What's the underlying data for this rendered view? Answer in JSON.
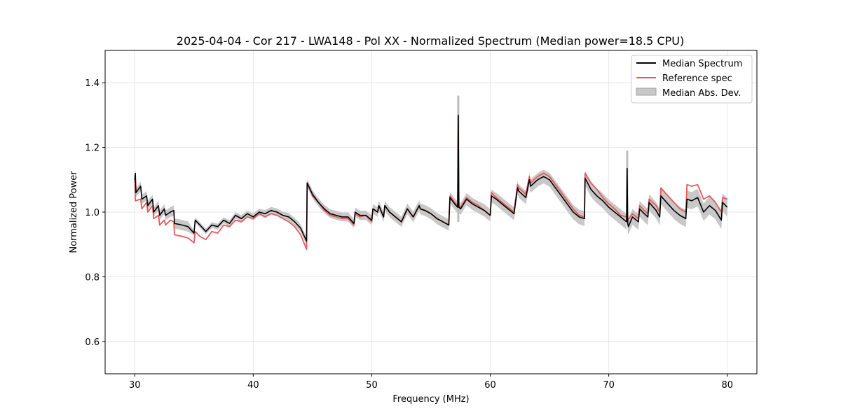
{
  "chart_data": {
    "type": "line",
    "title": "2025-04-04 - Cor 217 - LWA148 - Pol XX - Normalized Spectrum (Median power=18.5 CPU)",
    "xlabel": "Frequency (MHz)",
    "ylabel": "Normalized Power",
    "xlim": [
      27.5,
      82.5
    ],
    "ylim": [
      0.5,
      1.5
    ],
    "xticks": [
      30,
      40,
      50,
      60,
      70,
      80
    ],
    "yticks": [
      0.6,
      0.8,
      1.0,
      1.2,
      1.4
    ],
    "xtick_labels": [
      "30",
      "40",
      "50",
      "60",
      "70",
      "80"
    ],
    "ytick_labels": [
      "0.6",
      "0.8",
      "1.0",
      "1.2",
      "1.4"
    ],
    "grid": true,
    "legend_position": "top-right",
    "legend": [
      {
        "label": "Median Spectrum",
        "kind": "line",
        "color": "#000000"
      },
      {
        "label": "Reference spec",
        "kind": "line",
        "color": "#e8595b"
      },
      {
        "label": "Median Abs. Dev.",
        "kind": "band",
        "color": "#bdbdbd"
      }
    ],
    "series": [
      {
        "name": "Median Spectrum",
        "color": "#000000",
        "x": [
          30.0,
          30.05,
          30.1,
          30.5,
          30.6,
          31.0,
          31.1,
          31.5,
          31.6,
          32.0,
          32.1,
          32.5,
          32.6,
          33.0,
          33.3,
          33.35,
          34.0,
          34.5,
          35.0,
          35.1,
          35.5,
          36.0,
          36.5,
          37.0,
          37.5,
          38.0,
          38.5,
          39.0,
          39.5,
          40.0,
          40.5,
          41.0,
          41.5,
          42.0,
          42.5,
          43.0,
          43.5,
          44.0,
          44.5,
          44.55,
          45.0,
          45.5,
          46.0,
          46.5,
          47.0,
          47.5,
          48.0,
          48.5,
          48.6,
          49.0,
          49.5,
          50.0,
          50.1,
          50.5,
          50.6,
          51.0,
          51.1,
          51.5,
          52.0,
          52.5,
          53.0,
          53.5,
          54.0,
          54.1,
          54.5,
          55.0,
          55.5,
          56.0,
          56.5,
          56.6,
          57.0,
          57.25,
          57.3,
          57.35,
          57.5,
          58.0,
          58.5,
          59.0,
          59.5,
          60.0,
          60.1,
          60.5,
          61.0,
          61.5,
          62.0,
          62.3,
          62.4,
          63.0,
          63.3,
          63.4,
          64.0,
          64.5,
          65.0,
          65.5,
          66.0,
          66.5,
          67.0,
          67.5,
          67.95,
          68.0,
          68.5,
          69.0,
          69.5,
          70.0,
          70.5,
          71.0,
          71.5,
          71.55,
          71.6,
          71.65,
          72.0,
          72.5,
          72.6,
          73.0,
          73.3,
          73.4,
          74.0,
          74.3,
          74.4,
          75.0,
          75.5,
          76.0,
          76.5,
          76.6,
          77.0,
          77.5,
          78.0,
          78.5,
          79.0,
          79.5,
          79.6,
          80.0
        ],
        "y": [
          1.1,
          1.12,
          1.06,
          1.08,
          1.04,
          1.05,
          1.02,
          1.04,
          1.0,
          1.02,
          0.99,
          1.01,
          0.99,
          1.0,
          1.005,
          0.965,
          0.96,
          0.955,
          0.935,
          0.975,
          0.96,
          0.94,
          0.96,
          0.955,
          0.975,
          0.965,
          0.99,
          0.98,
          0.995,
          0.985,
          1.0,
          0.995,
          1.005,
          1.0,
          0.99,
          0.985,
          0.97,
          0.95,
          0.91,
          1.09,
          1.055,
          1.03,
          1.01,
          0.995,
          0.99,
          0.985,
          0.985,
          0.965,
          1.0,
          0.99,
          0.99,
          0.975,
          1.01,
          1.0,
          1.02,
          0.985,
          1.02,
          1.0,
          0.985,
          0.97,
          1.01,
          0.985,
          1.02,
          1.01,
          1.005,
          0.995,
          0.98,
          0.97,
          0.96,
          1.045,
          1.025,
          1.015,
          1.3,
          1.015,
          1.01,
          1.04,
          1.025,
          1.015,
          1.005,
          0.99,
          1.05,
          1.04,
          1.025,
          1.01,
          0.995,
          1.075,
          1.065,
          1.045,
          1.1,
          1.08,
          1.1,
          1.11,
          1.1,
          1.075,
          1.05,
          1.025,
          1.0,
          0.985,
          0.98,
          1.105,
          1.07,
          1.05,
          1.035,
          1.015,
          1.0,
          0.985,
          0.97,
          1.135,
          0.965,
          0.955,
          0.985,
          0.97,
          1.01,
          0.995,
          0.985,
          1.03,
          1.005,
          0.985,
          1.05,
          1.025,
          1.005,
          0.99,
          0.98,
          1.04,
          1.035,
          1.045,
          1.0,
          1.02,
          1.005,
          0.975,
          1.03,
          1.015
        ]
      },
      {
        "name": "Reference spec",
        "color": "#e8595b",
        "x": [
          30.0,
          30.05,
          30.5,
          30.6,
          31.0,
          31.1,
          31.5,
          31.6,
          32.0,
          32.1,
          32.5,
          32.6,
          33.0,
          33.3,
          33.35,
          34.0,
          34.5,
          35.0,
          35.1,
          35.5,
          36.0,
          36.5,
          37.0,
          37.5,
          38.0,
          38.5,
          39.0,
          39.5,
          40.0,
          40.5,
          41.0,
          41.5,
          42.0,
          42.5,
          43.0,
          43.5,
          44.0,
          44.5,
          44.55,
          45.0,
          45.5,
          46.0,
          46.5,
          47.0,
          47.5,
          48.0,
          48.5,
          48.6,
          49.0,
          49.5,
          50.0,
          50.1,
          50.5,
          50.6,
          51.0,
          51.1,
          51.5,
          52.0,
          52.5,
          53.0,
          53.5,
          54.0,
          54.1,
          54.5,
          55.0,
          55.5,
          56.0,
          56.5,
          56.6,
          57.0,
          57.25,
          57.3,
          57.35,
          57.5,
          58.0,
          58.5,
          59.0,
          59.5,
          60.0,
          60.1,
          60.5,
          61.0,
          61.5,
          62.0,
          62.3,
          62.4,
          63.0,
          63.3,
          63.4,
          64.0,
          64.5,
          65.0,
          65.5,
          66.0,
          66.5,
          67.0,
          67.5,
          67.95,
          68.0,
          68.5,
          69.0,
          69.5,
          70.0,
          70.5,
          71.0,
          71.5,
          71.6,
          72.0,
          72.5,
          72.6,
          73.0,
          73.3,
          73.4,
          74.0,
          74.3,
          74.4,
          75.0,
          75.5,
          76.0,
          76.5,
          76.6,
          77.0,
          77.5,
          78.0,
          78.5,
          79.0,
          79.5,
          79.6,
          80.0
        ],
        "y": [
          1.1,
          1.035,
          1.04,
          1.01,
          1.03,
          1.0,
          1.02,
          0.98,
          0.99,
          0.96,
          0.975,
          0.96,
          0.975,
          0.97,
          0.93,
          0.925,
          0.92,
          0.905,
          0.94,
          0.925,
          0.915,
          0.94,
          0.935,
          0.96,
          0.955,
          0.975,
          0.97,
          0.985,
          0.98,
          0.995,
          0.985,
          0.995,
          0.99,
          0.98,
          0.97,
          0.955,
          0.93,
          0.885,
          1.09,
          1.05,
          1.03,
          1.005,
          0.99,
          0.985,
          0.98,
          0.98,
          0.96,
          0.995,
          0.985,
          0.99,
          0.97,
          1.01,
          1.0,
          1.02,
          0.985,
          1.02,
          1.0,
          0.985,
          0.97,
          1.01,
          0.985,
          1.02,
          1.01,
          1.005,
          0.995,
          0.98,
          0.97,
          0.96,
          1.05,
          1.03,
          1.02,
          1.295,
          1.02,
          1.015,
          1.045,
          1.03,
          1.02,
          1.005,
          0.99,
          1.06,
          1.045,
          1.03,
          1.015,
          1.0,
          1.085,
          1.075,
          1.055,
          1.11,
          1.09,
          1.11,
          1.12,
          1.11,
          1.085,
          1.06,
          1.035,
          1.01,
          0.99,
          0.985,
          1.12,
          1.09,
          1.07,
          1.045,
          1.025,
          1.01,
          0.99,
          0.985,
          0.975,
          0.995,
          0.98,
          1.02,
          1.005,
          0.995,
          1.04,
          1.02,
          1.0,
          1.075,
          1.05,
          1.03,
          1.01,
          1.0,
          1.085,
          1.08,
          1.085,
          1.04,
          1.05,
          1.03,
          1.0,
          1.045,
          1.04
        ]
      }
    ],
    "band": {
      "name": "Median Abs. Dev.",
      "color": "#bdbdbd",
      "spike_x": [
        57.3,
        71.55
      ],
      "spike_top": [
        1.36,
        1.19
      ]
    }
  }
}
